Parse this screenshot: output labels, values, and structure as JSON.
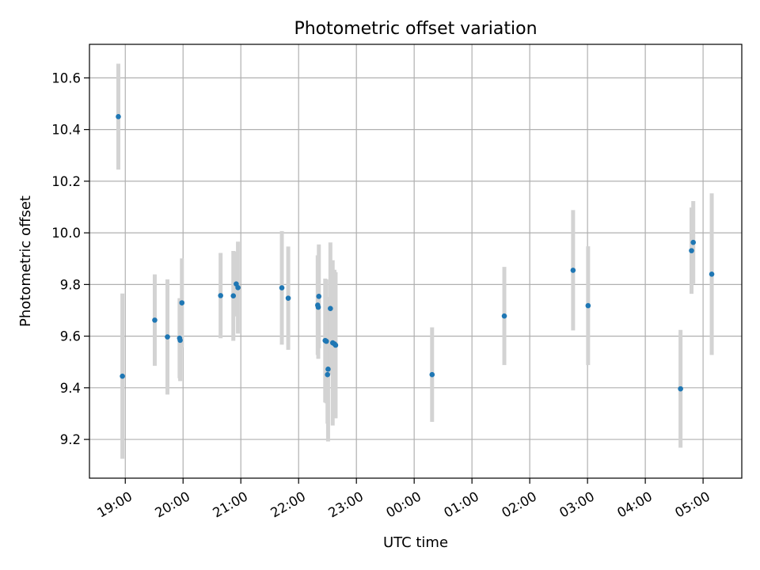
{
  "chart_data": {
    "type": "scatter",
    "title": "Photometric offset variation",
    "xlabel": "UTC time",
    "ylabel": "Photometric offset",
    "x_unit": "hours",
    "xlim": [
      18.38,
      29.67
    ],
    "ylim": [
      9.05,
      10.73
    ],
    "grid": true,
    "xticks": [
      {
        "value": 19,
        "label": "19:00"
      },
      {
        "value": 20,
        "label": "20:00"
      },
      {
        "value": 21,
        "label": "21:00"
      },
      {
        "value": 22,
        "label": "22:00"
      },
      {
        "value": 23,
        "label": "23:00"
      },
      {
        "value": 24,
        "label": "00:00"
      },
      {
        "value": 25,
        "label": "01:00"
      },
      {
        "value": 26,
        "label": "02:00"
      },
      {
        "value": 27,
        "label": "03:00"
      },
      {
        "value": 28,
        "label": "04:00"
      },
      {
        "value": 29,
        "label": "05:00"
      }
    ],
    "yticks": [
      {
        "value": 9.2,
        "label": "9.2"
      },
      {
        "value": 9.4,
        "label": "9.4"
      },
      {
        "value": 9.6,
        "label": "9.6"
      },
      {
        "value": 9.8,
        "label": "9.8"
      },
      {
        "value": 10.0,
        "label": "10.0"
      },
      {
        "value": 10.2,
        "label": "10.2"
      },
      {
        "value": 10.4,
        "label": "10.4"
      },
      {
        "value": 10.6,
        "label": "10.6"
      }
    ],
    "point_color": "#1f77b4",
    "errorbar_color": "#d3d3d3",
    "points": [
      {
        "x": 18.88,
        "y": 10.45,
        "err": 0.205
      },
      {
        "x": 18.95,
        "y": 9.445,
        "err": 0.32
      },
      {
        "x": 19.51,
        "y": 9.662,
        "err": 0.177
      },
      {
        "x": 19.73,
        "y": 9.597,
        "err": 0.223
      },
      {
        "x": 19.94,
        "y": 9.592,
        "err": 0.155
      },
      {
        "x": 19.95,
        "y": 9.584,
        "err": 0.158
      },
      {
        "x": 19.98,
        "y": 9.729,
        "err": 0.172
      },
      {
        "x": 20.65,
        "y": 9.757,
        "err": 0.165
      },
      {
        "x": 20.87,
        "y": 9.756,
        "err": 0.174
      },
      {
        "x": 20.92,
        "y": 9.802,
        "err": 0.126
      },
      {
        "x": 20.95,
        "y": 9.788,
        "err": 0.178
      },
      {
        "x": 21.71,
        "y": 9.787,
        "err": 0.22
      },
      {
        "x": 21.82,
        "y": 9.747,
        "err": 0.2
      },
      {
        "x": 22.33,
        "y": 9.72,
        "err": 0.193
      },
      {
        "x": 22.35,
        "y": 9.754,
        "err": 0.201
      },
      {
        "x": 22.34,
        "y": 9.712,
        "err": 0.2
      },
      {
        "x": 22.46,
        "y": 9.583,
        "err": 0.24
      },
      {
        "x": 22.48,
        "y": 9.58,
        "err": 0.24
      },
      {
        "x": 22.5,
        "y": 9.451,
        "err": 0.19
      },
      {
        "x": 22.51,
        "y": 9.472,
        "err": 0.28
      },
      {
        "x": 22.55,
        "y": 9.707,
        "err": 0.256
      },
      {
        "x": 22.59,
        "y": 9.574,
        "err": 0.32
      },
      {
        "x": 22.62,
        "y": 9.57,
        "err": 0.287
      },
      {
        "x": 22.64,
        "y": 9.565,
        "err": 0.283
      },
      {
        "x": 24.31,
        "y": 9.451,
        "err": 0.183
      },
      {
        "x": 25.56,
        "y": 9.678,
        "err": 0.19
      },
      {
        "x": 26.75,
        "y": 9.855,
        "err": 0.233
      },
      {
        "x": 27.01,
        "y": 9.718,
        "err": 0.23
      },
      {
        "x": 28.61,
        "y": 9.396,
        "err": 0.228
      },
      {
        "x": 28.8,
        "y": 9.931,
        "err": 0.167
      },
      {
        "x": 28.83,
        "y": 9.963,
        "err": 0.16
      },
      {
        "x": 29.15,
        "y": 9.84,
        "err": 0.313
      }
    ]
  }
}
